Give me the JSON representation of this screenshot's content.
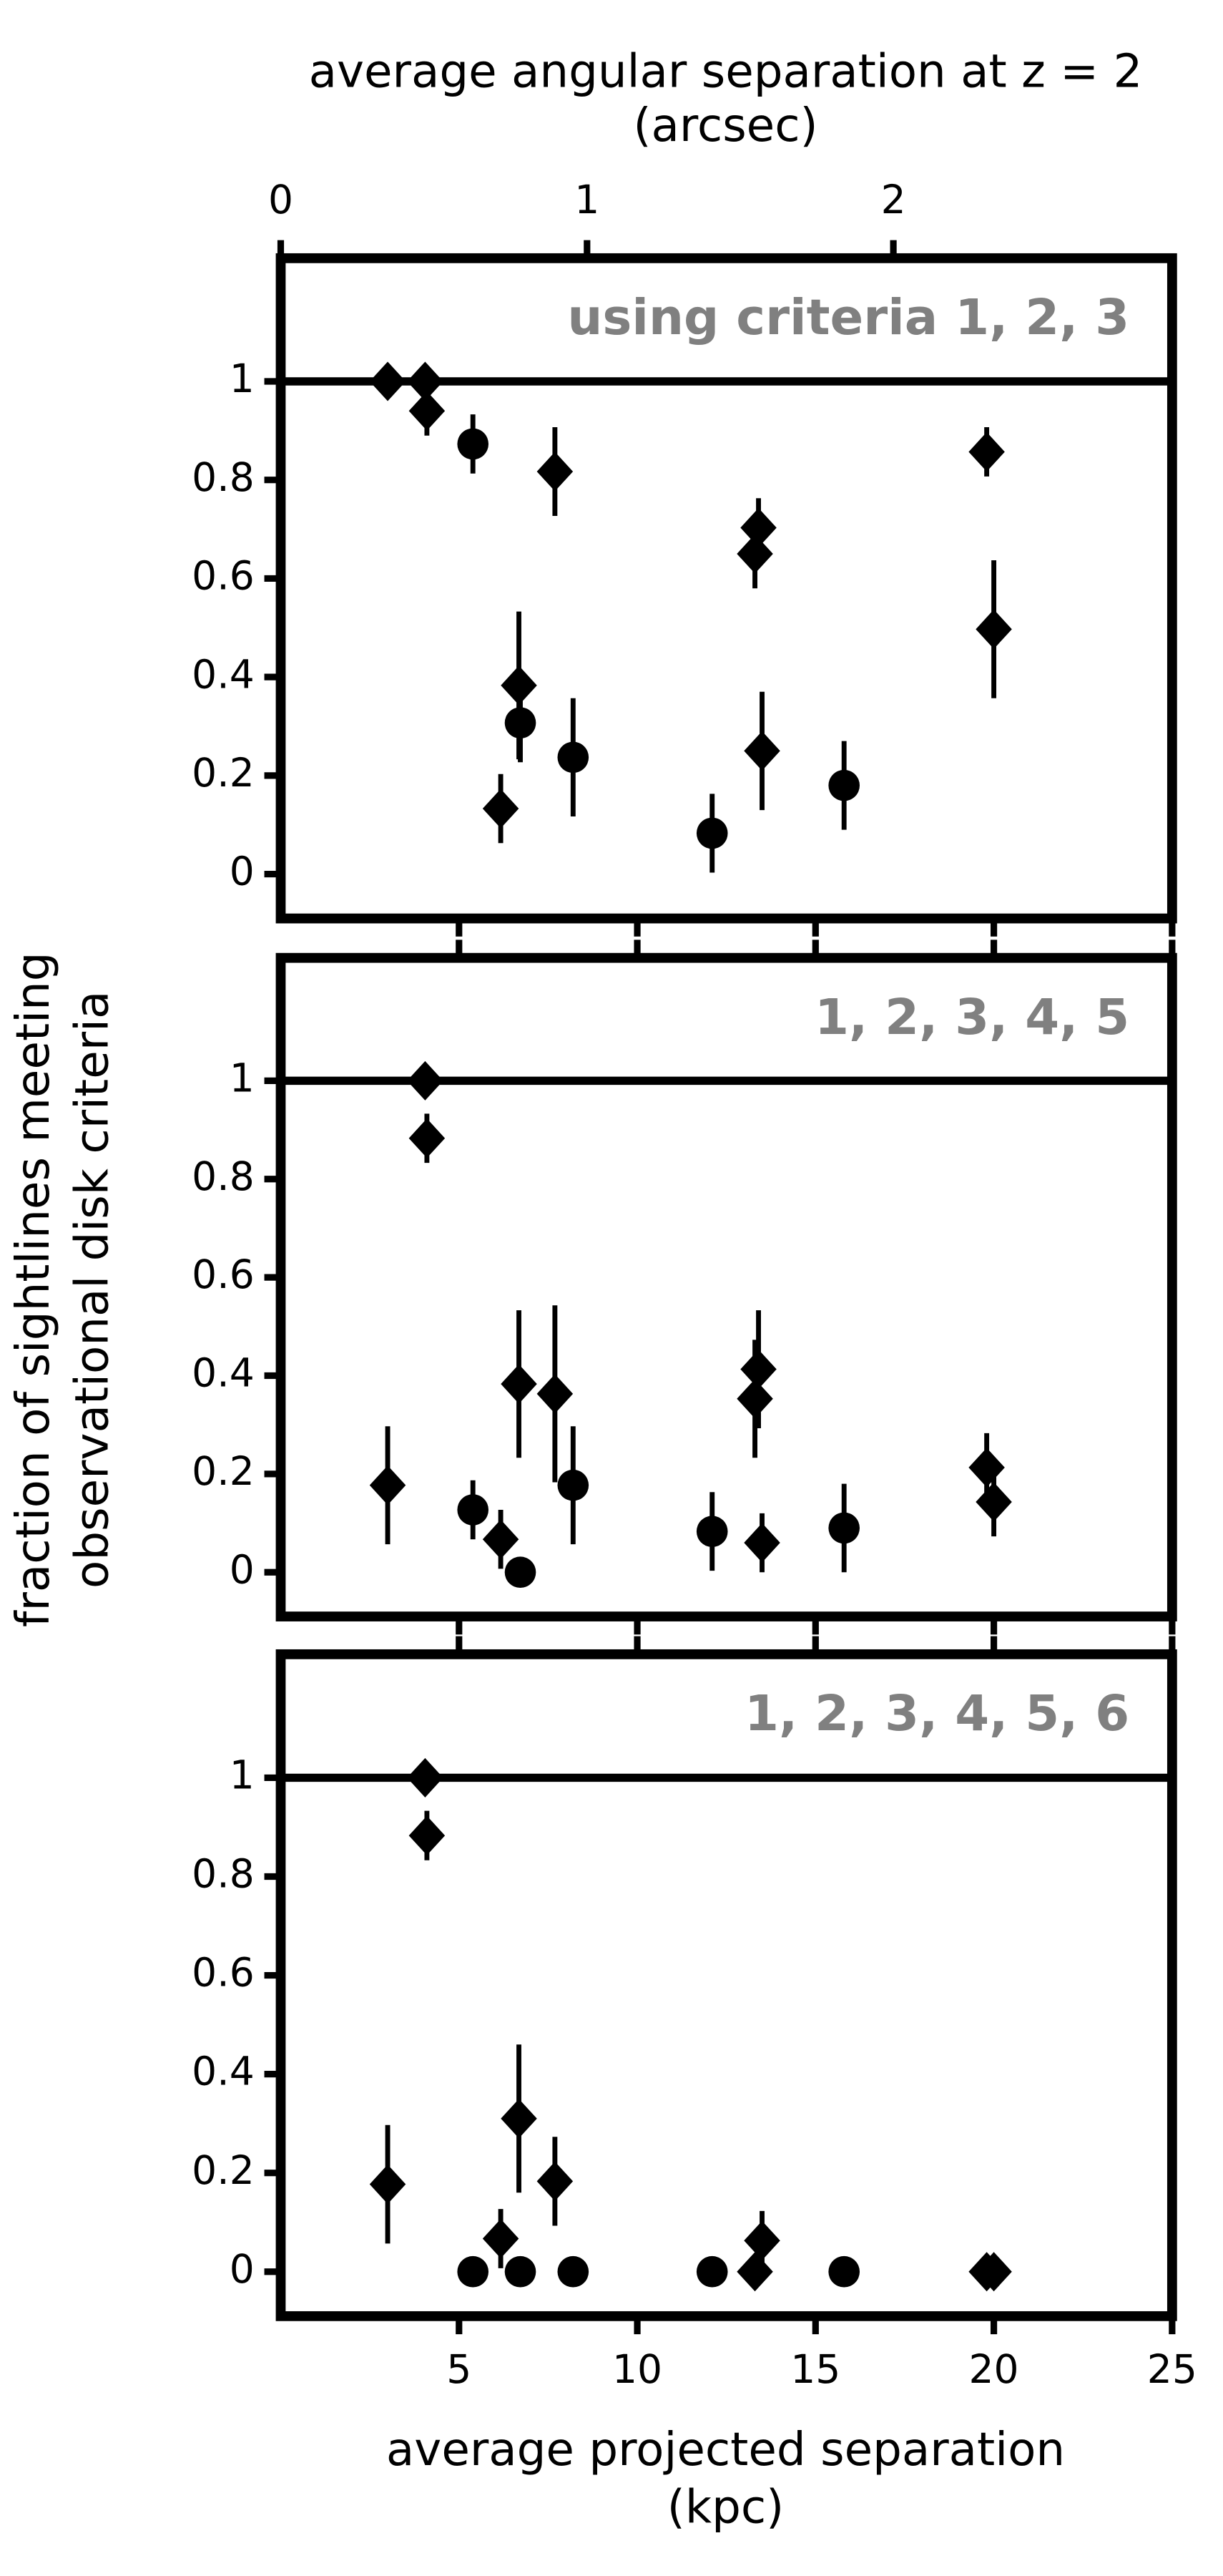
{
  "chart_data": [
    {
      "type": "scatter",
      "annotation": "using criteria 1, 2, 3",
      "x2label": [
        "average angular separation at z = 2",
        "(arcsec)"
      ],
      "x2lim": [
        0,
        2.91
      ],
      "x2ticks": [
        0,
        1,
        2
      ],
      "xlim": [
        0,
        25
      ],
      "ylim": [
        -0.09,
        1.25
      ],
      "yticks": [
        0,
        0.2,
        0.4,
        0.6,
        0.8,
        1
      ],
      "hline": 1,
      "series": [
        {
          "marker": "diamond",
          "color": "#000000",
          "x": [
            3.0,
            4.05,
            4.1,
            7.69,
            13.4,
            13.3,
            19.8,
            20.0,
            6.68,
            6.17,
            13.5
          ],
          "values": [
            1.0,
            1.0,
            0.94,
            0.817,
            0.703,
            0.65,
            0.857,
            0.497,
            0.383,
            0.133,
            0.25
          ],
          "errors": [
            0,
            0,
            0.05,
            0.09,
            0.06,
            0.07,
            0.05,
            0.14,
            0.15,
            0.07,
            0.12
          ]
        },
        {
          "marker": "circle",
          "color": "#000000",
          "x": [
            5.39,
            6.72,
            8.2,
            15.8,
            12.1
          ],
          "values": [
            0.873,
            0.307,
            0.237,
            0.18,
            0.083
          ],
          "errors": [
            0.06,
            0.08,
            0.12,
            0.09,
            0.08
          ]
        }
      ]
    },
    {
      "type": "scatter",
      "annotation": "1, 2, 3, 4, 5",
      "ylabel": [
        "fraction of sightlines meeting",
        "observational disk criteria"
      ],
      "xlim": [
        0,
        25
      ],
      "ylim": [
        -0.09,
        1.25
      ],
      "yticks": [
        0,
        0.2,
        0.4,
        0.6,
        0.8,
        1
      ],
      "hline": 1,
      "series": [
        {
          "marker": "diamond",
          "color": "#000000",
          "x": [
            3.0,
            4.05,
            4.1,
            6.17,
            6.68,
            7.69,
            13.4,
            13.3,
            13.5,
            19.8,
            20.0
          ],
          "values": [
            0.177,
            1.0,
            0.883,
            0.067,
            0.383,
            0.363,
            0.413,
            0.353,
            0.06,
            0.213,
            0.143
          ],
          "errors": [
            0.12,
            0,
            0.05,
            0.06,
            0.15,
            0.18,
            0.12,
            0.12,
            0.06,
            0.07,
            0.07
          ]
        },
        {
          "marker": "circle",
          "color": "#000000",
          "x": [
            5.39,
            6.72,
            8.2,
            12.1,
            15.8
          ],
          "values": [
            0.127,
            0,
            0.177,
            0.083,
            0.09
          ],
          "errors": [
            0.06,
            0,
            0.12,
            0.08,
            0.09
          ]
        }
      ]
    },
    {
      "type": "scatter",
      "annotation": "1, 2, 3, 4, 5, 6",
      "xlabel": [
        "average projected separation",
        "(kpc)"
      ],
      "xlim": [
        0,
        25
      ],
      "xticks": [
        5,
        10,
        15,
        20,
        25
      ],
      "ylim": [
        -0.09,
        1.25
      ],
      "yticks": [
        0,
        0.2,
        0.4,
        0.6,
        0.8,
        1
      ],
      "hline": 1,
      "series": [
        {
          "marker": "diamond",
          "color": "#000000",
          "x": [
            3.0,
            4.05,
            4.1,
            6.17,
            6.68,
            7.69,
            13.3,
            13.5,
            19.8,
            20.0
          ],
          "values": [
            0.177,
            1.0,
            0.883,
            0.067,
            0.31,
            0.183,
            0,
            0.063,
            0,
            0
          ],
          "errors": [
            0.12,
            0,
            0.05,
            0.06,
            0.15,
            0.09,
            0,
            0.06,
            0,
            0
          ]
        },
        {
          "marker": "circle",
          "color": "#000000",
          "x": [
            5.39,
            6.72,
            8.2,
            12.1,
            15.8
          ],
          "values": [
            0,
            0,
            0,
            0,
            0
          ],
          "errors": [
            0,
            0,
            0,
            0,
            0
          ]
        }
      ]
    }
  ]
}
